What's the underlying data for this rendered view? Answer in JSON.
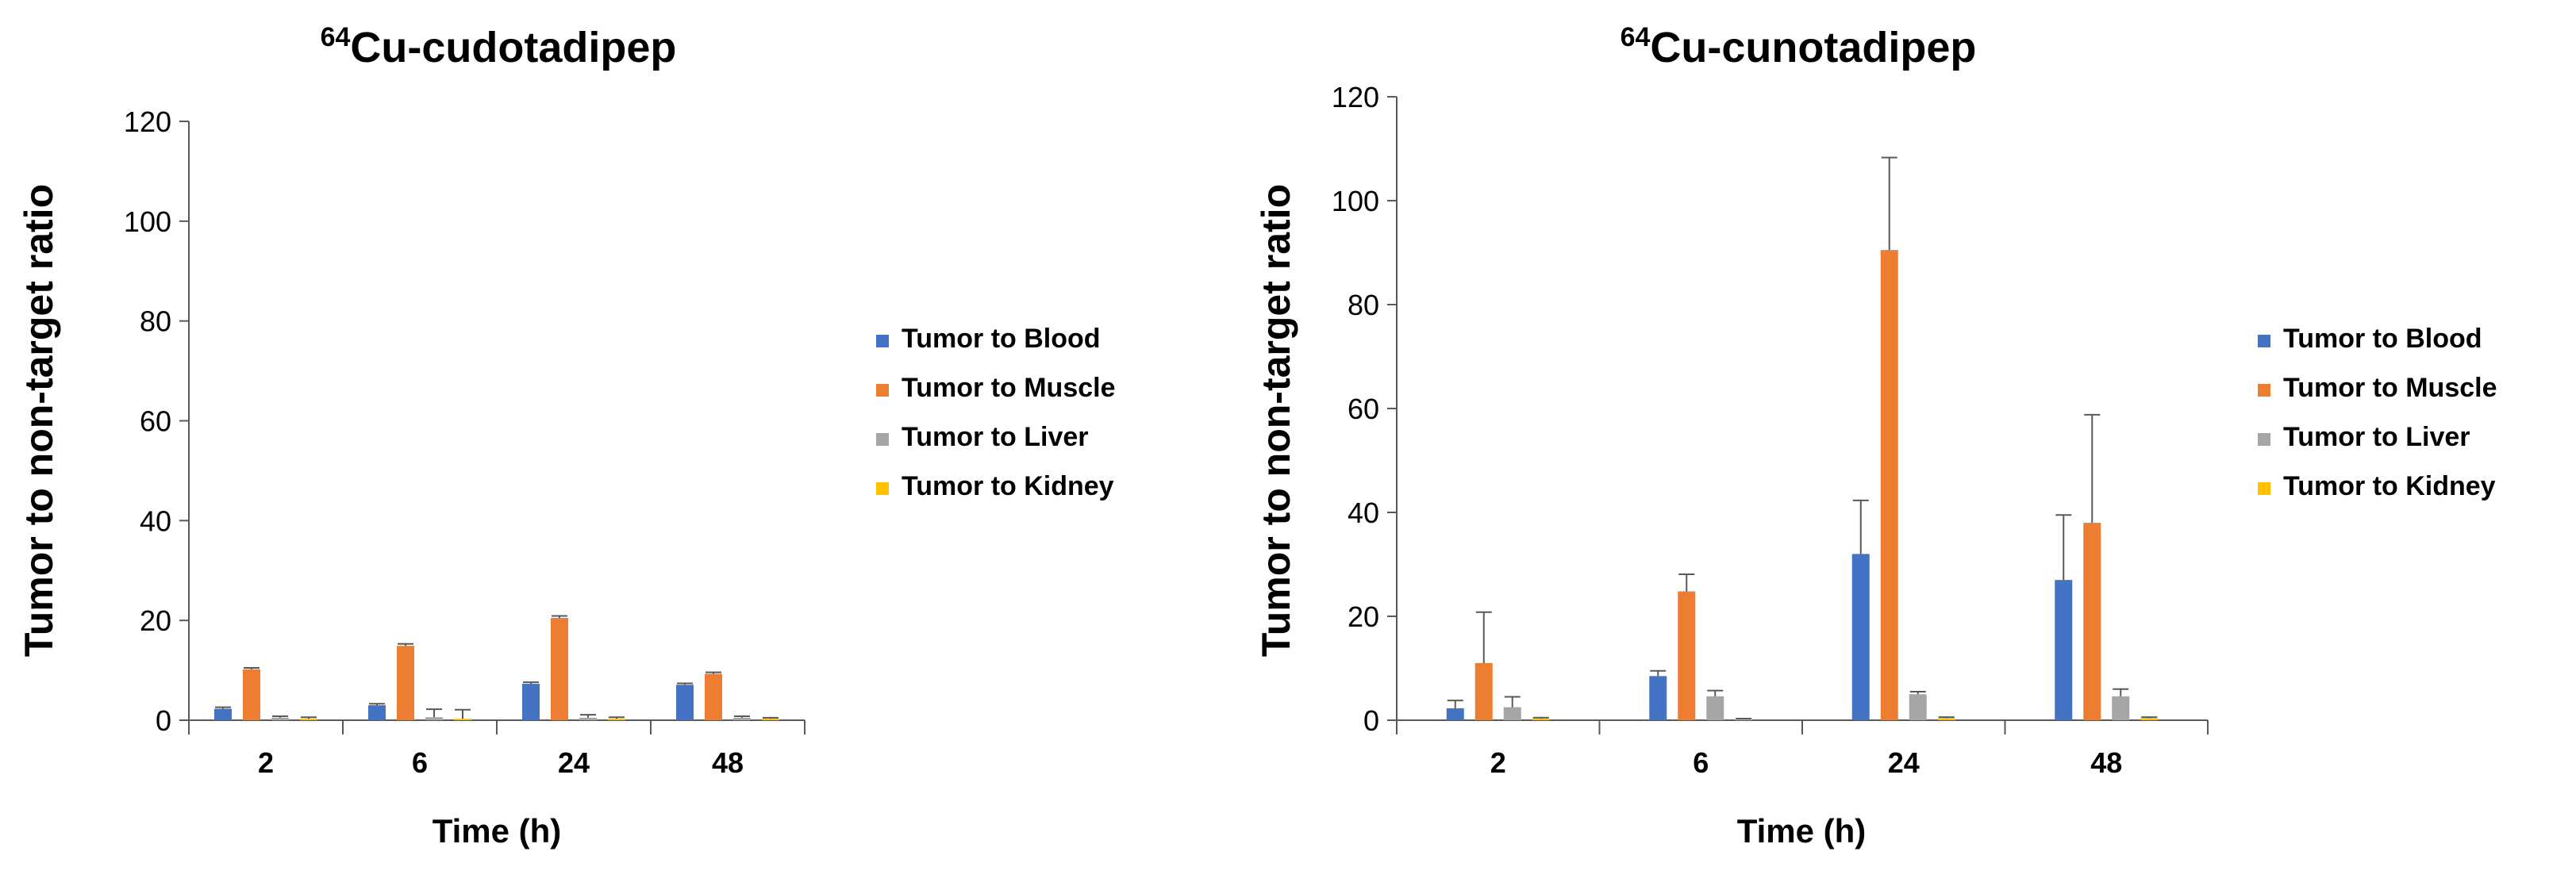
{
  "chart_data": [
    {
      "type": "bar",
      "title_sup": "64",
      "title_main": "Cu-cudotadipep",
      "xlabel": "Time (h)",
      "ylabel": "Tumor to non-target ratio",
      "categories": [
        "2",
        "6",
        "24",
        "48"
      ],
      "ylim": [
        0,
        120
      ],
      "yticks": [
        0,
        20,
        40,
        60,
        80,
        100,
        120
      ],
      "tick_labels": [
        "0",
        "20",
        "40",
        "60",
        "80",
        "100",
        "120"
      ],
      "series": [
        {
          "name": "Tumor to Blood",
          "values": [
            2.3,
            3.0,
            7.3,
            7.1
          ],
          "errors": [
            0.3,
            0.3,
            0.3,
            0.3
          ]
        },
        {
          "name": "Tumor to Muscle",
          "values": [
            10.2,
            14.9,
            20.5,
            9.3
          ],
          "errors": [
            0.3,
            0.4,
            0.4,
            0.3
          ]
        },
        {
          "name": "Tumor to Liver",
          "values": [
            0.5,
            0.6,
            0.5,
            0.5
          ],
          "errors": [
            0.3,
            1.6,
            0.6,
            0.3
          ]
        },
        {
          "name": "Tumor to Kidney",
          "values": [
            0.3,
            0.3,
            0.3,
            0.3
          ],
          "errors": [
            0.3,
            1.8,
            0.3,
            0.2
          ]
        }
      ]
    },
    {
      "type": "bar",
      "title_sup": "64",
      "title_main": "Cu-cunotadipep",
      "xlabel": "Time (h)",
      "ylabel": "Tumor to non-target ratio",
      "categories": [
        "2",
        "6",
        "24",
        "48"
      ],
      "ylim": [
        0,
        120
      ],
      "yticks": [
        0,
        20,
        40,
        60,
        80,
        100,
        120
      ],
      "tick_labels": [
        "0",
        "20",
        "40",
        "60",
        "80",
        "100",
        "120"
      ],
      "series": [
        {
          "name": "Tumor to Blood",
          "values": [
            2.3,
            8.5,
            32.0,
            27.0
          ],
          "errors": [
            1.5,
            1.0,
            10.3,
            12.5
          ]
        },
        {
          "name": "Tumor to Muscle",
          "values": [
            11.0,
            24.8,
            90.5,
            38.0
          ],
          "errors": [
            9.8,
            3.3,
            17.8,
            20.8
          ]
        },
        {
          "name": "Tumor to Liver",
          "values": [
            2.5,
            4.6,
            5.0,
            4.6
          ],
          "errors": [
            2.0,
            1.1,
            0.5,
            1.4
          ]
        },
        {
          "name": "Tumor to Kidney",
          "values": [
            0.3,
            0.2,
            0.4,
            0.4
          ],
          "errors": [
            0.2,
            0.1,
            0.2,
            0.2
          ]
        }
      ]
    }
  ],
  "colors": {
    "Tumor to Blood": "#4472C4",
    "Tumor to Muscle": "#ED7D31",
    "Tumor to Liver": "#A5A5A5",
    "Tumor to Kidney": "#FFC000",
    "axis": "#595959",
    "error_bar": "#595959",
    "text": "#000000"
  }
}
